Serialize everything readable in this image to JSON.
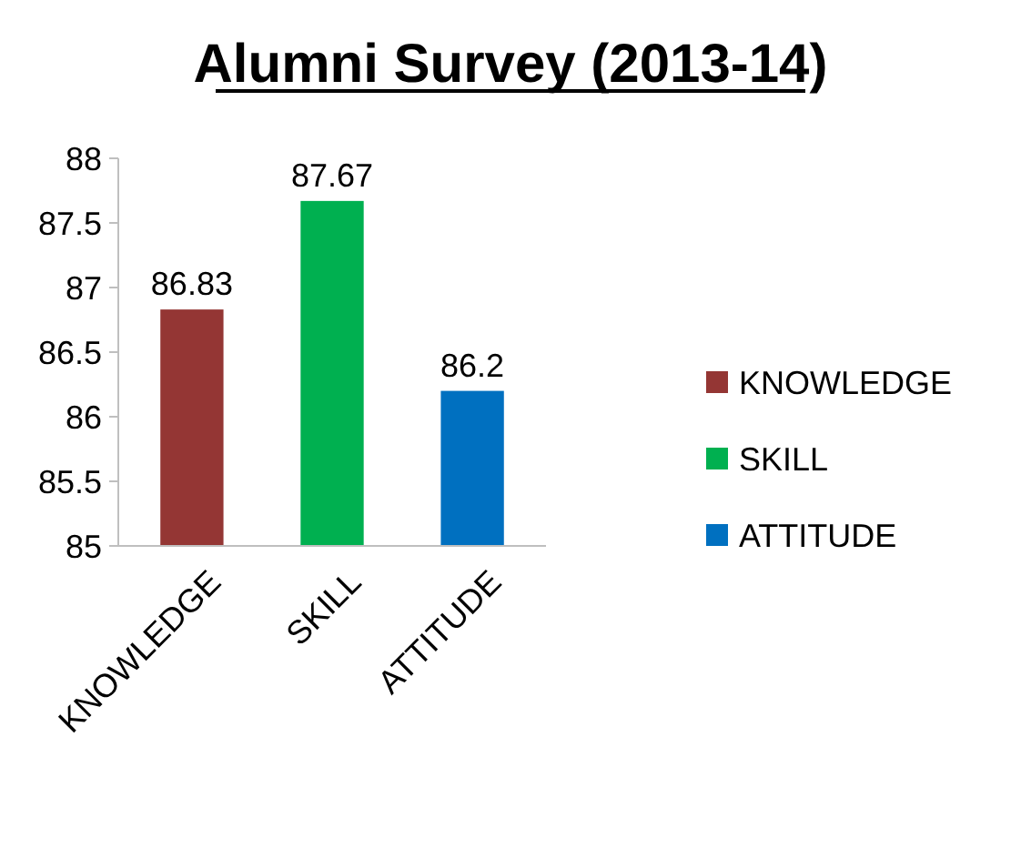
{
  "chart_data": {
    "type": "bar",
    "title": "Alumni Survey (2013-14)",
    "categories": [
      "KNOWLEDGE",
      "SKILL",
      "ATTITUDE"
    ],
    "series": [
      {
        "name": "KNOWLEDGE",
        "color": "#943634",
        "values": [
          86.83,
          null,
          null
        ]
      },
      {
        "name": "SKILL",
        "color": "#00b050",
        "values": [
          null,
          87.67,
          null
        ]
      },
      {
        "name": "ATTITUDE",
        "color": "#0070c0",
        "values": [
          null,
          null,
          86.2
        ]
      }
    ],
    "ylim": [
      85,
      88
    ],
    "yticks": [
      85,
      85.5,
      86,
      86.5,
      87,
      87.5,
      88
    ],
    "data_labels": true,
    "legend": "right"
  }
}
